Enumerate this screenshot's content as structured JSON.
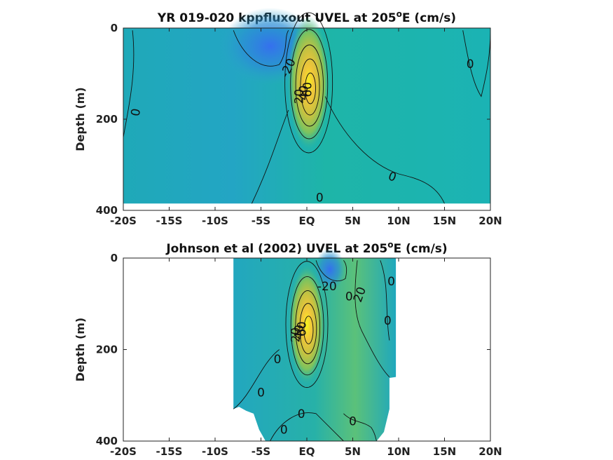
{
  "chart_data": [
    {
      "type": "heatmap",
      "title": "YR 019-020 kppfluxout UVEL at 205",
      "title_deg": "o",
      "title_end": "E (cm/s)",
      "ylabel": "Depth (m)",
      "xlabel": "",
      "xlim": [
        -20,
        20
      ],
      "ylim": [
        0,
        400
      ],
      "y_reversed": true,
      "x_ticks": [
        -20,
        -15,
        -10,
        -5,
        0,
        5,
        10,
        15,
        20
      ],
      "x_tick_labels": [
        "-20S",
        "-15S",
        "-10S",
        "-5S",
        "EQ",
        "5N",
        "10N",
        "15N",
        "20N"
      ],
      "y_ticks": [
        0,
        200,
        400
      ],
      "y_tick_labels": [
        "0",
        "200",
        "400"
      ],
      "data_extent": {
        "x": [
          -20,
          20
        ],
        "y": [
          0,
          385
        ]
      },
      "core": {
        "lat": 0.2,
        "depth": 120,
        "max_cms": 100
      },
      "westward_min": {
        "lat": -4,
        "depth": 40,
        "min_cms": -30
      },
      "contour_labels": [
        {
          "text": "-20",
          "lat": -2.0,
          "depth": 88,
          "rot": -65
        },
        {
          "text": "0",
          "lat": -18.6,
          "depth": 185,
          "rot": -80
        },
        {
          "text": "0",
          "lat": 1.4,
          "depth": 373,
          "rot": 0
        },
        {
          "text": "0",
          "lat": 9.3,
          "depth": 327,
          "rot": 20
        },
        {
          "text": "0",
          "lat": 17.8,
          "depth": 80,
          "rot": 0
        },
        {
          "text": "20",
          "lat": -0.8,
          "depth": 150,
          "rot": -90
        },
        {
          "text": "40",
          "lat": -0.3,
          "depth": 142,
          "rot": -90
        },
        {
          "text": "60",
          "lat": 0.1,
          "depth": 135,
          "rot": -90
        }
      ]
    },
    {
      "type": "heatmap",
      "title": "Johnson et al (2002) UVEL at 205",
      "title_deg": "o",
      "title_end": "E (cm/s)",
      "ylabel": "Depth (m)",
      "xlabel": "",
      "xlim": [
        -20,
        20
      ],
      "ylim": [
        0,
        400
      ],
      "y_reversed": true,
      "x_ticks": [
        -20,
        -15,
        -10,
        -5,
        0,
        5,
        10,
        15,
        20
      ],
      "x_tick_labels": [
        "-20S",
        "-15S",
        "-10S",
        "-5S",
        "EQ",
        "5N",
        "10N",
        "15N",
        "20N"
      ],
      "y_ticks": [
        0,
        200,
        400
      ],
      "y_tick_labels": [
        "0",
        "200",
        "400"
      ],
      "data_extent": {
        "x": [
          -8,
          9.7
        ],
        "y": [
          0,
          400
        ]
      },
      "core": {
        "lat": 0.0,
        "depth": 145,
        "max_cms": 100
      },
      "westward_min": {
        "lat": 2.5,
        "depth": 25,
        "min_cms": -30
      },
      "contour_labels": [
        {
          "text": "-20",
          "lat": 2.2,
          "depth": 63,
          "rot": 0
        },
        {
          "text": "20",
          "lat": 5.8,
          "depth": 80,
          "rot": -70
        },
        {
          "text": "0",
          "lat": 4.6,
          "depth": 85,
          "rot": 0
        },
        {
          "text": "0",
          "lat": 9.2,
          "depth": 52,
          "rot": 0
        },
        {
          "text": "0",
          "lat": 8.8,
          "depth": 138,
          "rot": 0
        },
        {
          "text": "0",
          "lat": -3.2,
          "depth": 222,
          "rot": 0
        },
        {
          "text": "0",
          "lat": -5.0,
          "depth": 295,
          "rot": 0
        },
        {
          "text": "0",
          "lat": -0.6,
          "depth": 342,
          "rot": 0
        },
        {
          "text": "0",
          "lat": -2.5,
          "depth": 376,
          "rot": 0
        },
        {
          "text": "0",
          "lat": 5.0,
          "depth": 358,
          "rot": 0
        },
        {
          "text": "20",
          "lat": -1.2,
          "depth": 168,
          "rot": -90
        },
        {
          "text": "40",
          "lat": -0.8,
          "depth": 162,
          "rot": -90
        },
        {
          "text": "60",
          "lat": -0.5,
          "depth": 155,
          "rot": -90
        }
      ]
    }
  ]
}
